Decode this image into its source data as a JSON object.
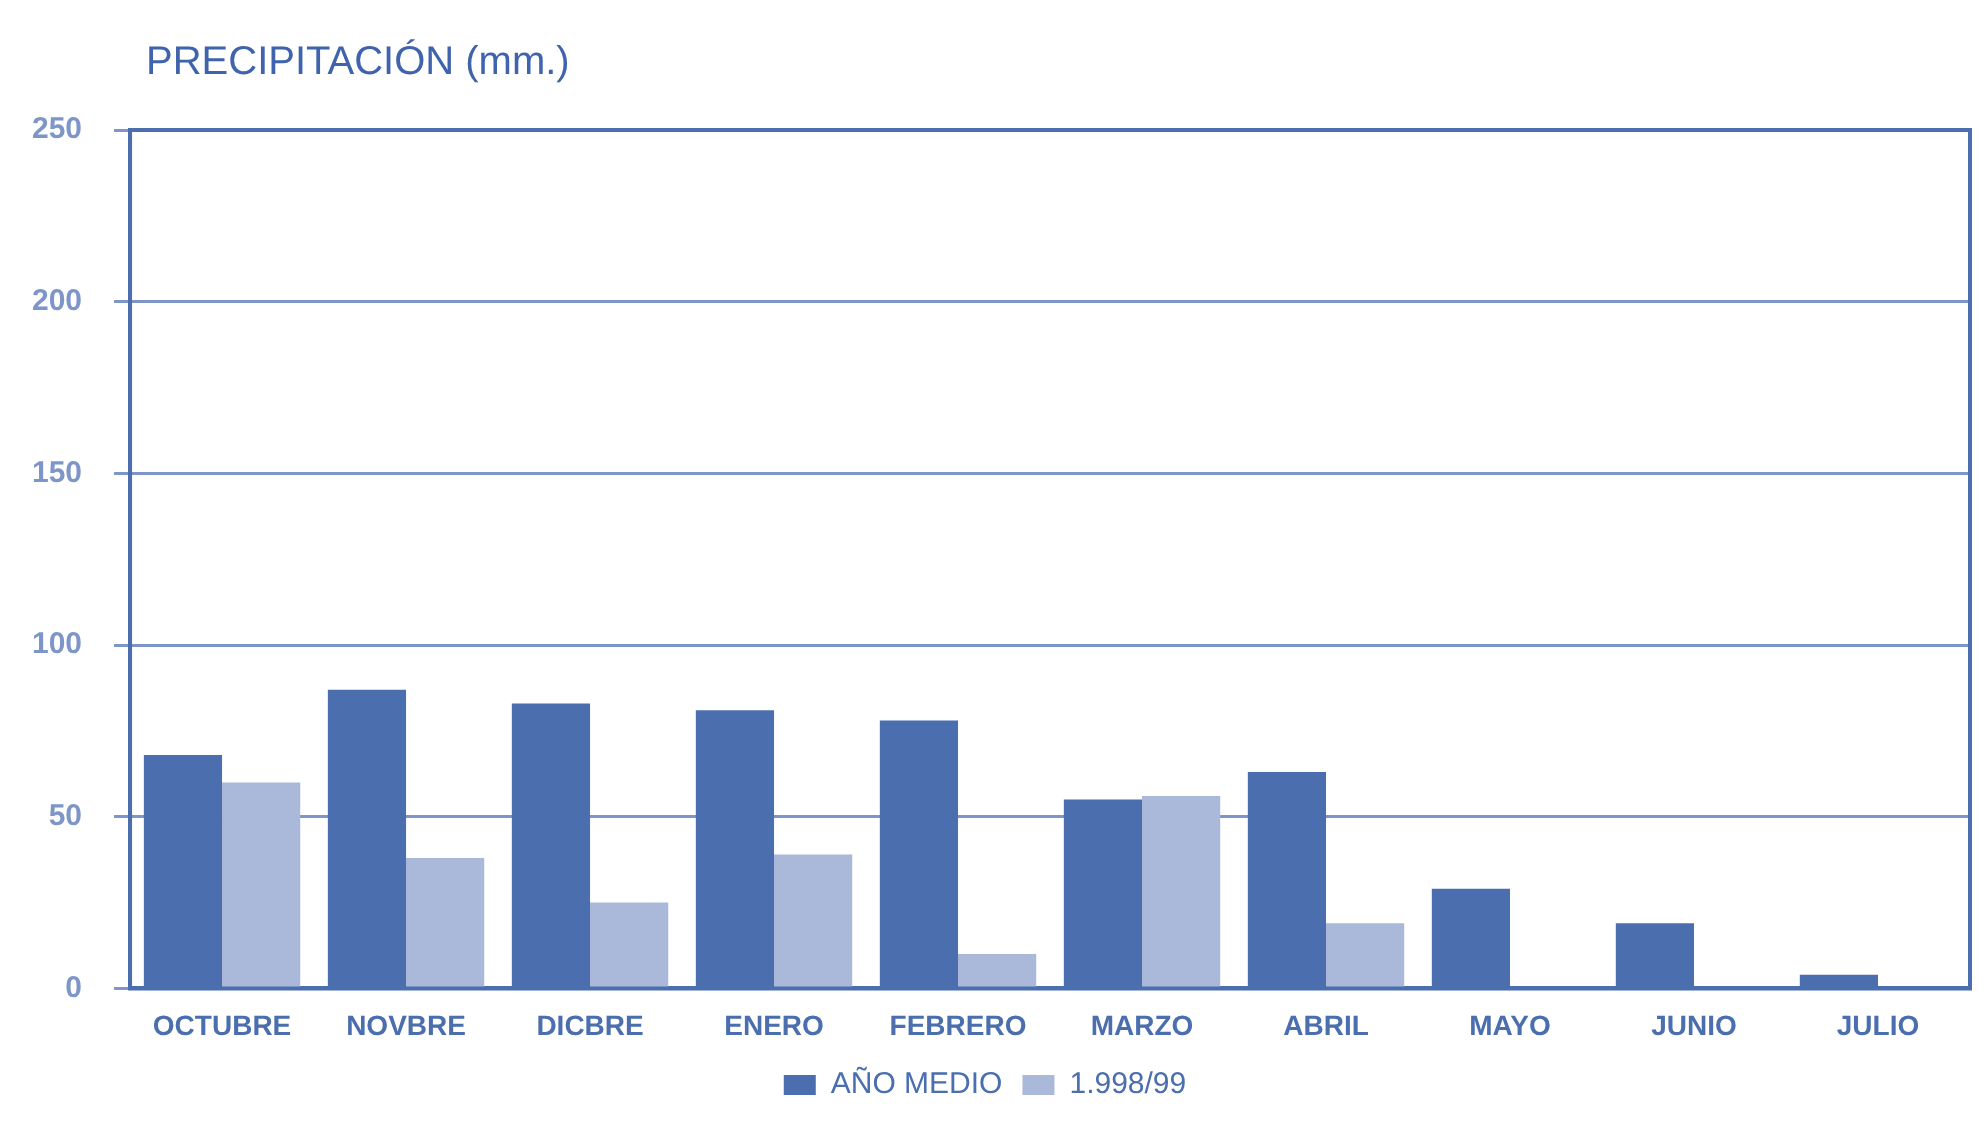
{
  "chart_data": {
    "type": "bar",
    "title": "PRECIPITACIÓN (mm.)",
    "categories": [
      "OCTUBRE",
      "NOVBRE",
      "DICBRE",
      "ENERO",
      "FEBRERO",
      "MARZO",
      "ABRIL",
      "MAYO",
      "JUNIO",
      "JULIO"
    ],
    "series": [
      {
        "name": "AÑO MEDIO",
        "color": "#4a6eae",
        "values": [
          68,
          87,
          83,
          81,
          78,
          55,
          63,
          29,
          19,
          4
        ]
      },
      {
        "name": "1.998/99",
        "color": "#aab8d9",
        "values": [
          60,
          38,
          25,
          39,
          10,
          56,
          19,
          0,
          0,
          0
        ]
      }
    ],
    "ylim": [
      0,
      250
    ],
    "yticks": [
      0,
      50,
      100,
      150,
      200,
      250
    ],
    "grid": "y",
    "legend": "bottom"
  }
}
